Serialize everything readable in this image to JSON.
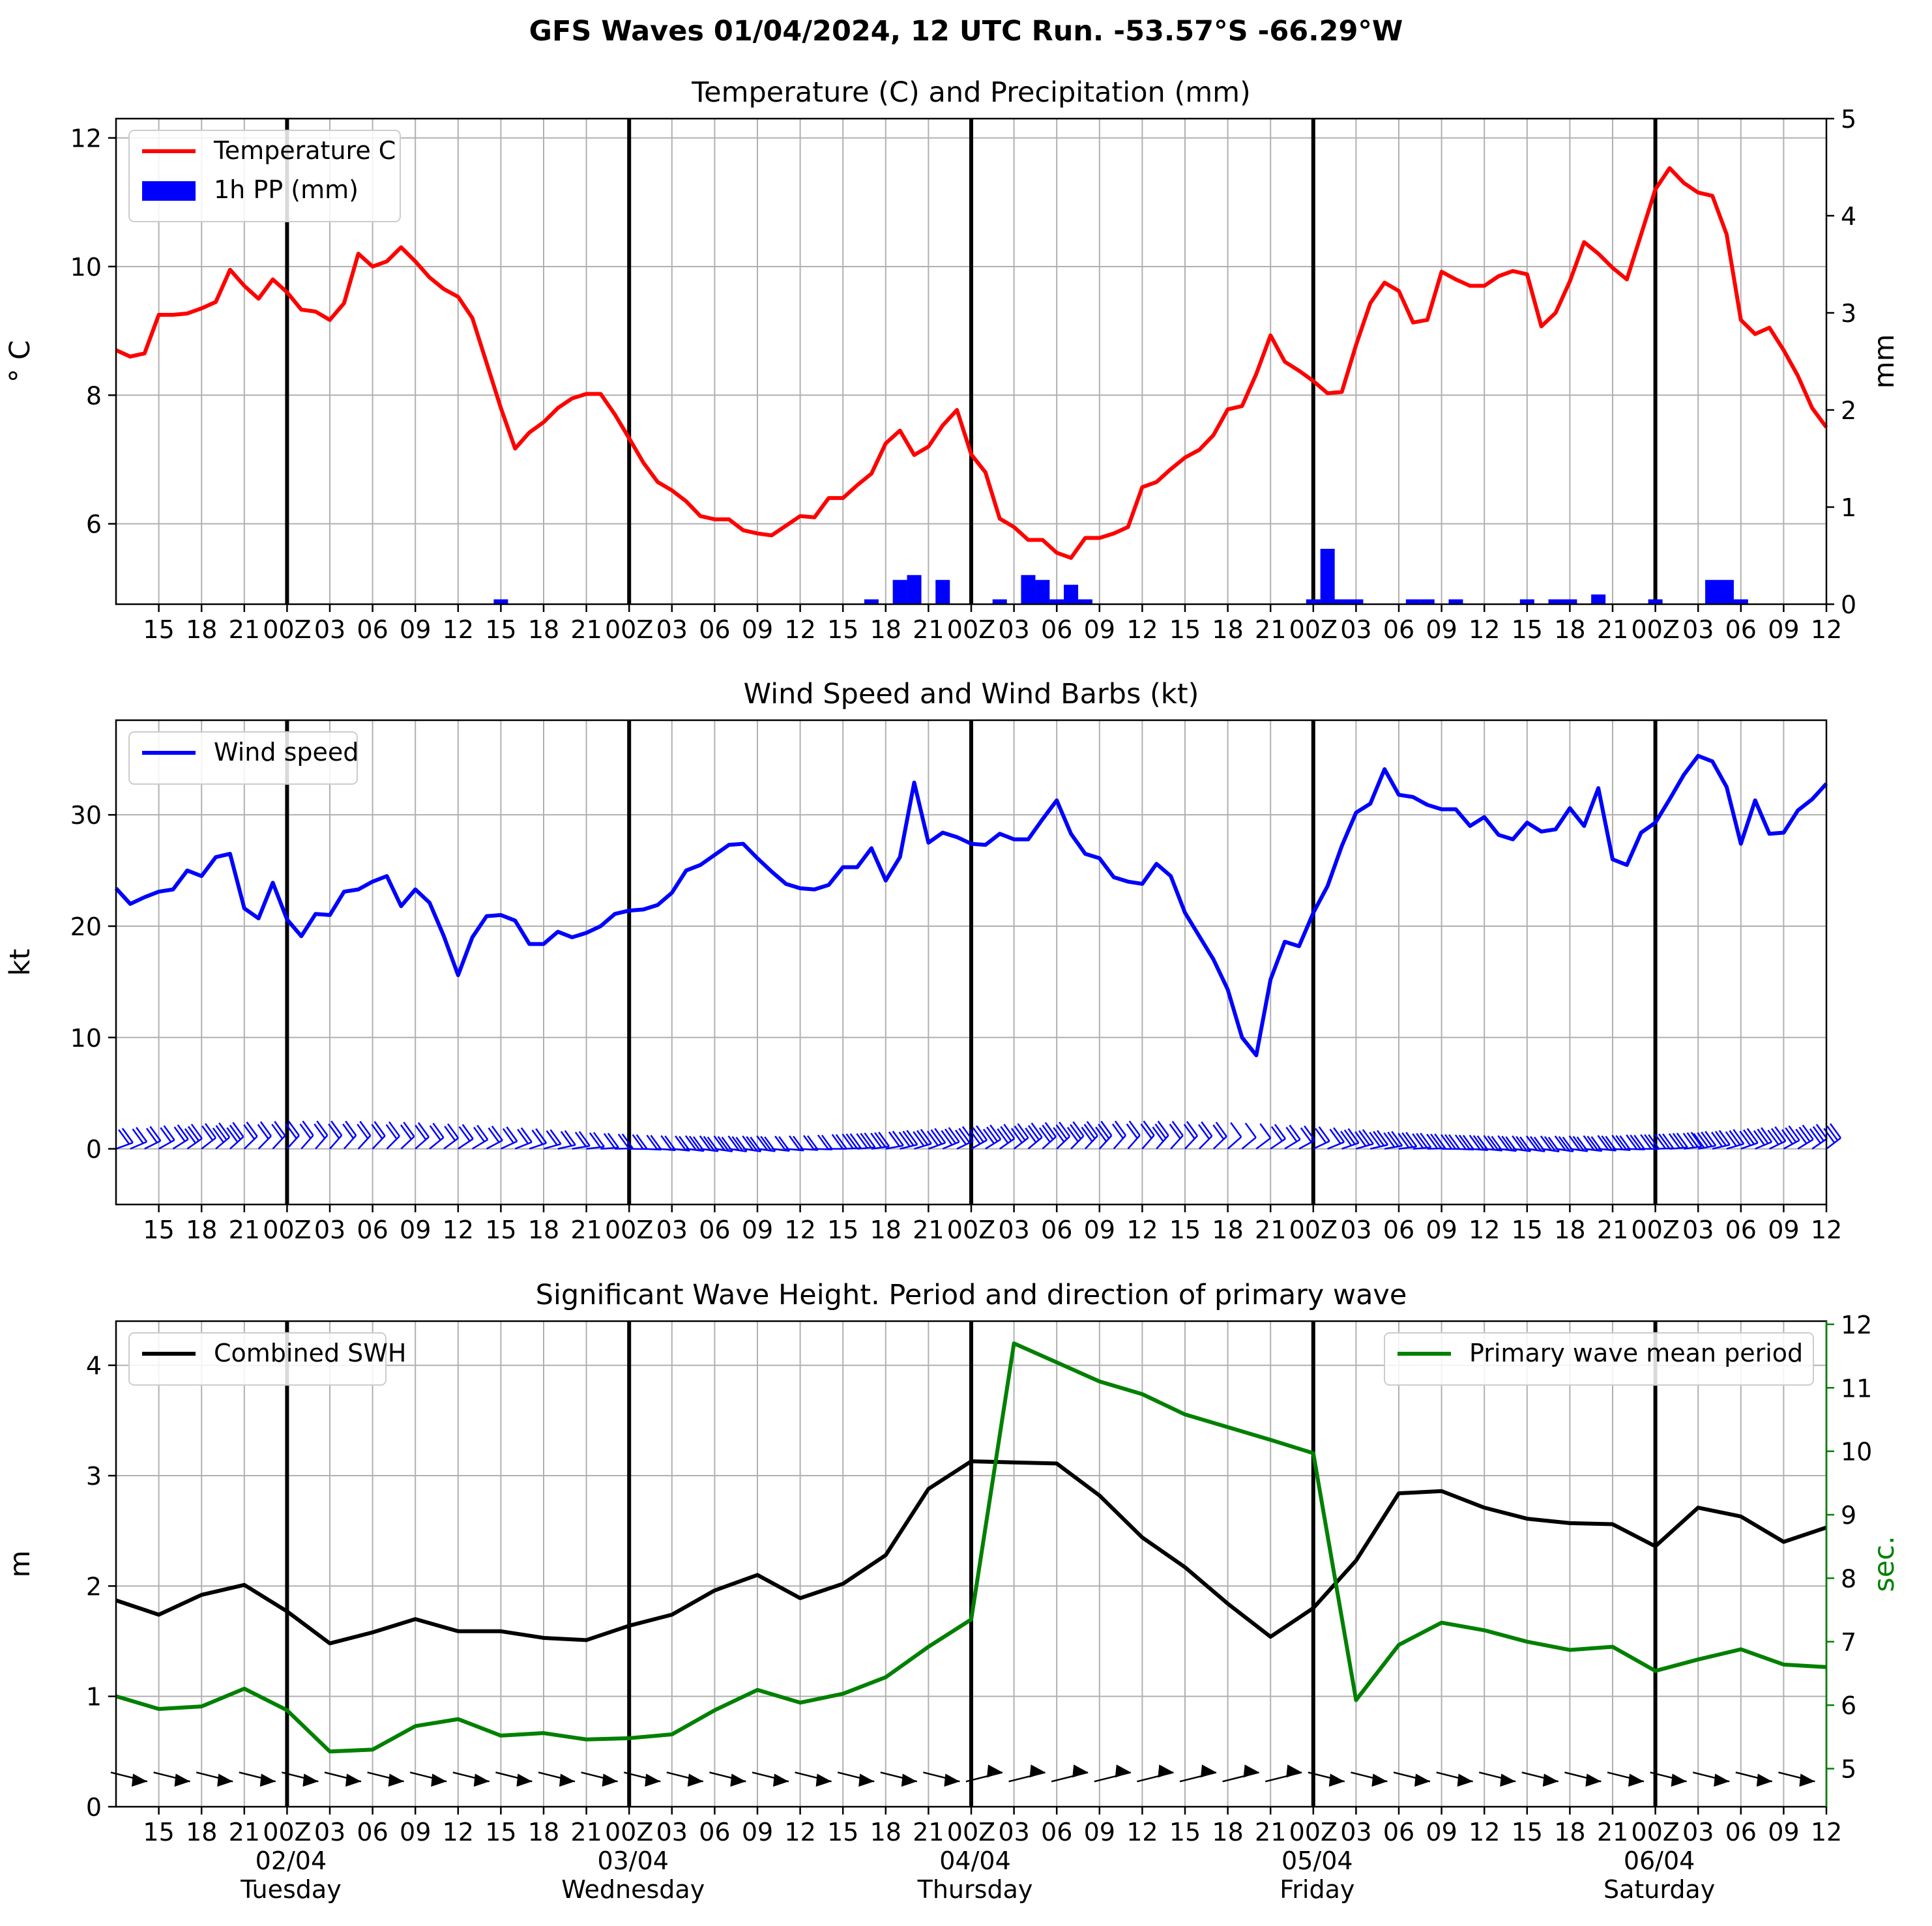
{
  "figure": {
    "title": "GFS Waves 01/04/2024, 12 UTC Run. -53.57°S -66.29°W"
  },
  "time_axis": {
    "x_range_hours": [
      0,
      120
    ],
    "tick_labels": [
      "15",
      "18",
      "21",
      "00Z",
      "03",
      "06",
      "09",
      "12",
      "15",
      "18",
      "21",
      "00Z",
      "03",
      "06",
      "09",
      "12",
      "15",
      "18",
      "21",
      "00Z",
      "03",
      "06",
      "09",
      "12",
      "15",
      "18",
      "21",
      "00Z",
      "03",
      "06",
      "09",
      "12",
      "15",
      "18",
      "21",
      "00Z",
      "03",
      "06",
      "09",
      "12"
    ],
    "day_labels": [
      {
        "date": "02/04",
        "weekday": "Tuesday"
      },
      {
        "date": "03/04",
        "weekday": "Wednesday"
      },
      {
        "date": "04/04",
        "weekday": "Thursday"
      },
      {
        "date": "05/04",
        "weekday": "Friday"
      },
      {
        "date": "06/04",
        "weekday": "Saturday"
      }
    ],
    "grid": true
  },
  "chart_data": [
    {
      "type": "line",
      "title": "Temperature (C) and Precipitation (mm)",
      "ylabel": "° C",
      "ylabel_right": "mm",
      "ylim": [
        4.75,
        12.3
      ],
      "ylim_right": [
        0,
        5
      ],
      "yticks": [
        6,
        8,
        10,
        12
      ],
      "yticks_right": [
        0,
        1,
        2,
        3,
        4,
        5
      ],
      "legend_position": "top-left",
      "legend": [
        "Temperature C",
        "1h PP (mm)"
      ],
      "series": [
        {
          "name": "Temperature C",
          "color": "#ff0000",
          "x": [
            0,
            1,
            2,
            3,
            4,
            5,
            6,
            7,
            8,
            9,
            10,
            11,
            12,
            13,
            14,
            15,
            16,
            17,
            18,
            19,
            20,
            21,
            22,
            23,
            24,
            25,
            26,
            27,
            28,
            29,
            30,
            31,
            32,
            33,
            34,
            35,
            36,
            37,
            38,
            39,
            40,
            41,
            42,
            43,
            44,
            45,
            46,
            47,
            48,
            49,
            50,
            51,
            52,
            53,
            54,
            55,
            56,
            57,
            58,
            59,
            60,
            61,
            62,
            63,
            64,
            65,
            66,
            67,
            68,
            69,
            70,
            71,
            72,
            73,
            74,
            75,
            76,
            77,
            78,
            79,
            80,
            81,
            82,
            83,
            84,
            85,
            86,
            87,
            88,
            89,
            90,
            91,
            92,
            93,
            94,
            95,
            96,
            97,
            98,
            99,
            100,
            101,
            102,
            103,
            104,
            105,
            106,
            107,
            108,
            109,
            110,
            111,
            112,
            113,
            114,
            115,
            116,
            117,
            118,
            119,
            120
          ],
          "y": [
            8.7,
            8.6,
            8.65,
            9.25,
            9.25,
            9.27,
            9.35,
            9.45,
            9.95,
            9.7,
            9.5,
            9.8,
            9.6,
            9.33,
            9.3,
            9.17,
            9.43,
            10.2,
            10,
            10.08,
            10.3,
            10.08,
            9.83,
            9.65,
            9.53,
            9.2,
            8.5,
            7.8,
            7.17,
            7.42,
            7.58,
            7.8,
            7.95,
            8.02,
            8.02,
            7.7,
            7.33,
            6.95,
            6.65,
            6.52,
            6.35,
            6.12,
            6.07,
            6.07,
            5.9,
            5.85,
            5.82,
            5.97,
            6.12,
            6.1,
            6.4,
            6.4,
            6.6,
            6.78,
            7.25,
            7.45,
            7.07,
            7.2,
            7.53,
            7.77,
            7.08,
            6.8,
            6.08,
            5.95,
            5.75,
            5.75,
            5.55,
            5.47,
            5.78,
            5.78,
            5.85,
            5.95,
            6.57,
            6.65,
            6.85,
            7.03,
            7.15,
            7.38,
            7.78,
            7.83,
            8.33,
            8.93,
            8.52,
            8.38,
            8.22,
            8.03,
            8.05,
            8.78,
            9.43,
            9.75,
            9.62,
            9.13,
            9.17,
            9.92,
            9.8,
            9.7,
            9.7,
            9.85,
            9.93,
            9.88,
            9.07,
            9.28,
            9.77,
            10.38,
            10.2,
            9.98,
            9.8,
            10.5,
            11.2,
            11.53,
            11.3,
            11.15,
            11.1,
            10.5,
            9.17,
            8.95,
            9.05,
            8.7,
            8.3,
            7.8,
            7.5
          ]
        },
        {
          "name": "1h PP (mm)",
          "type": "bar",
          "axis": "right",
          "color": "#0000ff",
          "x": [
            27,
            53,
            55,
            56,
            58,
            62,
            64,
            65,
            66,
            67,
            68,
            84,
            85,
            86,
            87,
            91,
            92,
            94,
            99,
            101,
            102,
            104,
            108,
            112,
            113,
            114
          ],
          "values": [
            0.05,
            0.05,
            0.25,
            0.3,
            0.25,
            0.05,
            0.3,
            0.25,
            0.05,
            0.2,
            0.05,
            0.05,
            0.57,
            0.05,
            0.05,
            0.05,
            0.05,
            0.05,
            0.05,
            0.05,
            0.05,
            0.1,
            0.05,
            0.25,
            0.25,
            0.05
          ]
        }
      ]
    },
    {
      "type": "line",
      "title": "Wind Speed and Wind Barbs (kt)",
      "ylabel": "kt",
      "ylim": [
        -5,
        38.5
      ],
      "yticks": [
        0,
        10,
        20,
        30
      ],
      "legend_position": "top-left",
      "legend": [
        "Wind speed"
      ],
      "wind_barbs": {
        "color": "#0000ff",
        "row_y": 0,
        "interval_hours": 1
      },
      "series": [
        {
          "name": "Wind speed",
          "color": "#0000ff",
          "x": [
            0,
            1,
            2,
            3,
            4,
            5,
            6,
            7,
            8,
            9,
            10,
            11,
            12,
            13,
            14,
            15,
            16,
            17,
            18,
            19,
            20,
            21,
            22,
            23,
            24,
            25,
            26,
            27,
            28,
            29,
            30,
            31,
            32,
            33,
            34,
            35,
            36,
            37,
            38,
            39,
            40,
            41,
            42,
            43,
            44,
            45,
            46,
            47,
            48,
            49,
            50,
            51,
            52,
            53,
            54,
            55,
            56,
            57,
            58,
            59,
            60,
            61,
            62,
            63,
            64,
            65,
            66,
            67,
            68,
            69,
            70,
            71,
            72,
            73,
            74,
            75,
            76,
            77,
            78,
            79,
            80,
            81,
            82,
            83,
            84,
            85,
            86,
            87,
            88,
            89,
            90,
            91,
            92,
            93,
            94,
            95,
            96,
            97,
            98,
            99,
            100,
            101,
            102,
            103,
            104,
            105,
            106,
            107,
            108,
            109,
            110,
            111,
            112,
            113,
            114,
            115,
            116,
            117,
            118,
            119,
            120
          ],
          "y": [
            23.4,
            22,
            22.6,
            23.1,
            23.3,
            25,
            24.5,
            26.2,
            26.5,
            21.6,
            20.7,
            23.9,
            20.6,
            19.1,
            21.1,
            21,
            23.1,
            23.3,
            24,
            24.5,
            21.8,
            23.3,
            22.1,
            19.1,
            15.6,
            19,
            20.9,
            21,
            20.5,
            18.4,
            18.4,
            19.5,
            19,
            19.4,
            20,
            21.1,
            21.4,
            21.5,
            21.9,
            23,
            25,
            25.5,
            26.4,
            27.3,
            27.4,
            26.1,
            24.9,
            23.8,
            23.4,
            23.3,
            23.7,
            25.3,
            25.3,
            27,
            24.1,
            26.2,
            32.9,
            27.5,
            28.4,
            28,
            27.4,
            27.3,
            28.3,
            27.8,
            27.8,
            29.6,
            31.3,
            28.3,
            26.5,
            26.1,
            24.4,
            24,
            23.8,
            25.6,
            24.5,
            21.2,
            19.1,
            17,
            14.3,
            10,
            8.4,
            15.2,
            18.6,
            18.2,
            21.2,
            23.6,
            27.2,
            30.2,
            31,
            34.1,
            31.8,
            31.6,
            30.9,
            30.5,
            30.5,
            29,
            29.8,
            28.2,
            27.8,
            29.3,
            28.5,
            28.7,
            30.6,
            29,
            32.4,
            26,
            25.5,
            28.4,
            29.3,
            31.4,
            33.6,
            35.3,
            34.8,
            32.5,
            27.4,
            31.3,
            28.3,
            28.4,
            30.4,
            31.4,
            32.8
          ]
        }
      ]
    },
    {
      "type": "line",
      "title": "Significant Wave Height. Period and direction of primary wave",
      "ylabel": "m",
      "ylabel_right": "sec.",
      "ylim": [
        0,
        4.4
      ],
      "ylim_right": [
        4.4,
        12.05
      ],
      "yticks": [
        0,
        1,
        2,
        3,
        4
      ],
      "yticks_right": [
        5,
        6,
        7,
        8,
        9,
        10,
        11,
        12
      ],
      "legend": [
        "Combined SWH",
        "Primary wave mean period"
      ],
      "legend_positions": [
        "top-left",
        "top-right"
      ],
      "direction_arrows": {
        "color": "#000000",
        "row_y": 0.27,
        "interval_hours": 3
      },
      "series": [
        {
          "name": "Combined SWH",
          "color": "#000000",
          "x": [
            0,
            3,
            6,
            9,
            12,
            15,
            18,
            21,
            24,
            27,
            30,
            33,
            36,
            39,
            42,
            45,
            48,
            51,
            54,
            57,
            60,
            63,
            66,
            69,
            72,
            75,
            78,
            81,
            84,
            87,
            90,
            93,
            96,
            99,
            102,
            105,
            108,
            111,
            114,
            117,
            120
          ],
          "y": [
            1.87,
            1.74,
            1.92,
            2.01,
            1.77,
            1.48,
            1.58,
            1.7,
            1.59,
            1.59,
            1.53,
            1.51,
            1.64,
            1.74,
            1.96,
            2.1,
            1.89,
            2.02,
            2.28,
            2.88,
            3.13,
            3.12,
            3.11,
            2.82,
            2.44,
            2.17,
            1.84,
            1.54,
            1.8,
            2.23,
            2.84,
            2.86,
            2.71,
            2.61,
            2.57,
            2.56,
            2.36,
            2.71,
            2.63,
            2.4,
            2.53
          ]
        },
        {
          "name": "Primary wave mean period",
          "axis": "right",
          "color": "#008000",
          "x": [
            0,
            3,
            6,
            9,
            12,
            15,
            18,
            21,
            24,
            27,
            30,
            33,
            36,
            39,
            42,
            45,
            48,
            51,
            54,
            57,
            60,
            63,
            66,
            69,
            72,
            75,
            78,
            81,
            84,
            87,
            90,
            93,
            96,
            99,
            102,
            105,
            108,
            111,
            114,
            117,
            120
          ],
          "y": [
            6.14,
            5.94,
            5.98,
            6.26,
            5.92,
            5.27,
            5.3,
            5.67,
            5.78,
            5.52,
            5.56,
            5.46,
            5.48,
            5.54,
            5.92,
            6.24,
            6.04,
            6.18,
            6.44,
            6.92,
            7.35,
            11.7,
            11.4,
            11.1,
            10.9,
            10.58,
            10.38,
            10.18,
            9.97,
            6.08,
            6.95,
            7.3,
            7.18,
            7.0,
            6.87,
            6.92,
            6.54,
            6.72,
            6.88,
            6.64,
            6.6
          ]
        }
      ]
    }
  ]
}
